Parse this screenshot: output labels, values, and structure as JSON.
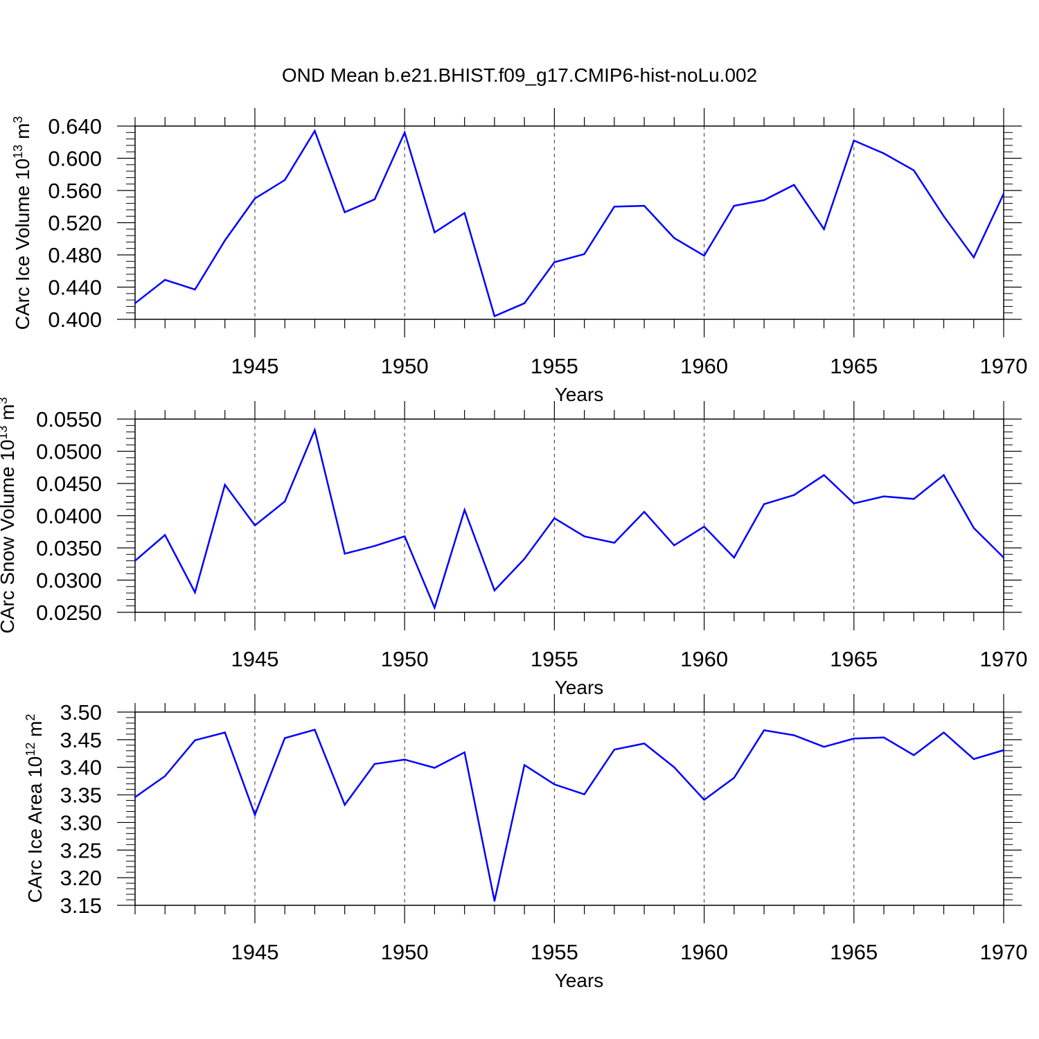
{
  "title": "OND Mean b.e21.BHIST.f09_g17.CMIP6-hist-noLu.002",
  "line_color": "#0000ff",
  "chart_data": [
    {
      "type": "line",
      "ylabel": "CArc Ice Volume 10",
      "ylabel_exp": "13",
      "ylabel_unit": " m",
      "ylabel_unit_exp": "3",
      "xlabel": "Years",
      "xlim": [
        1941,
        1970
      ],
      "ylim": [
        0.4,
        0.64
      ],
      "yticks": [
        "0.400",
        "0.440",
        "0.480",
        "0.520",
        "0.560",
        "0.600",
        "0.640"
      ],
      "xticks": [
        "1945",
        "1950",
        "1955",
        "1960",
        "1965",
        "1970"
      ],
      "x": [
        1941,
        1942,
        1943,
        1944,
        1945,
        1946,
        1947,
        1948,
        1949,
        1950,
        1951,
        1952,
        1953,
        1954,
        1955,
        1956,
        1957,
        1958,
        1959,
        1960,
        1961,
        1962,
        1963,
        1964,
        1965,
        1966,
        1967,
        1968,
        1969,
        1970
      ],
      "values": [
        0.42,
        0.449,
        0.437,
        0.498,
        0.55,
        0.573,
        0.634,
        0.533,
        0.549,
        0.632,
        0.508,
        0.532,
        0.404,
        0.42,
        0.471,
        0.481,
        0.54,
        0.541,
        0.501,
        0.479,
        0.541,
        0.548,
        0.567,
        0.512,
        0.622,
        0.606,
        0.585,
        0.528,
        0.477,
        0.556
      ]
    },
    {
      "type": "line",
      "ylabel": "CArc Snow Volume 10",
      "ylabel_exp": "13",
      "ylabel_unit": " m",
      "ylabel_unit_exp": "3",
      "xlabel": "Years",
      "xlim": [
        1941,
        1970
      ],
      "ylim": [
        0.025,
        0.055
      ],
      "yticks": [
        "0.0250",
        "0.0300",
        "0.0350",
        "0.0400",
        "0.0450",
        "0.0500",
        "0.0550"
      ],
      "xticks": [
        "1945",
        "1950",
        "1955",
        "1960",
        "1965",
        "1970"
      ],
      "x": [
        1941,
        1942,
        1943,
        1944,
        1945,
        1946,
        1947,
        1948,
        1949,
        1950,
        1951,
        1952,
        1953,
        1954,
        1955,
        1956,
        1957,
        1958,
        1959,
        1960,
        1961,
        1962,
        1963,
        1964,
        1965,
        1966,
        1967,
        1968,
        1969,
        1970
      ],
      "values": [
        0.033,
        0.037,
        0.0281,
        0.0448,
        0.0385,
        0.0422,
        0.0533,
        0.0341,
        0.0353,
        0.0368,
        0.0257,
        0.0409,
        0.0284,
        0.0333,
        0.0396,
        0.0368,
        0.0358,
        0.0406,
        0.0354,
        0.0383,
        0.0335,
        0.0418,
        0.0432,
        0.0463,
        0.0419,
        0.043,
        0.0426,
        0.0463,
        0.0381,
        0.0335
      ]
    },
    {
      "type": "line",
      "ylabel": "CArc Ice Area 10",
      "ylabel_exp": "12",
      "ylabel_unit": " m",
      "ylabel_unit_exp": "2",
      "xlabel": "Years",
      "xlim": [
        1941,
        1970
      ],
      "ylim": [
        3.15,
        3.5
      ],
      "yticks": [
        "3.15",
        "3.20",
        "3.25",
        "3.30",
        "3.35",
        "3.40",
        "3.45",
        "3.50"
      ],
      "xticks": [
        "1945",
        "1950",
        "1955",
        "1960",
        "1965",
        "1970"
      ],
      "x": [
        1941,
        1942,
        1943,
        1944,
        1945,
        1946,
        1947,
        1948,
        1949,
        1950,
        1951,
        1952,
        1953,
        1954,
        1955,
        1956,
        1957,
        1958,
        1959,
        1960,
        1961,
        1962,
        1963,
        1964,
        1965,
        1966,
        1967,
        1968,
        1969,
        1970
      ],
      "values": [
        3.346,
        3.384,
        3.449,
        3.463,
        3.314,
        3.453,
        3.468,
        3.332,
        3.406,
        3.414,
        3.399,
        3.427,
        3.158,
        3.404,
        3.369,
        3.351,
        3.432,
        3.443,
        3.4,
        3.341,
        3.381,
        3.467,
        3.458,
        3.437,
        3.452,
        3.454,
        3.422,
        3.463,
        3.415,
        3.431
      ]
    }
  ]
}
